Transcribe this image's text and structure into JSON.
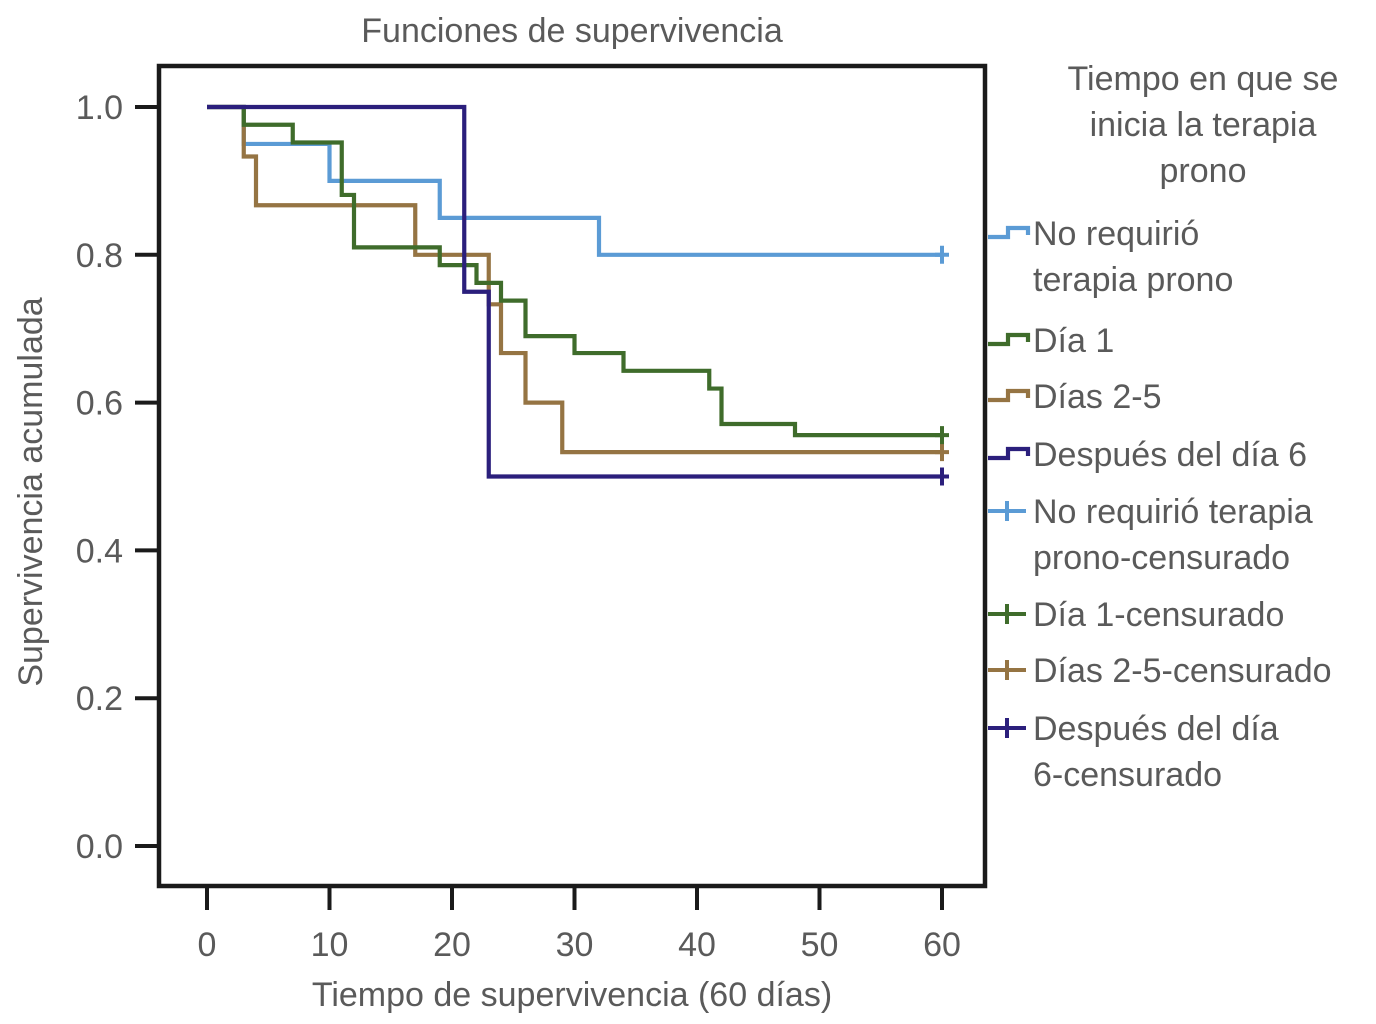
{
  "chart_data": {
    "type": "line",
    "subtype": "kaplan-meier-step",
    "title": "Funciones de supervivencia",
    "xlabel": "Tiempo de supervivencia (60 días)",
    "ylabel": "Supervivencia acumulada",
    "xlim": [
      -4,
      63
    ],
    "ylim": [
      -0.055,
      1.055
    ],
    "xticks": [
      0,
      10,
      20,
      30,
      40,
      50,
      60
    ],
    "xtick_labels": [
      "0",
      "10",
      "20",
      "30",
      "40",
      "50",
      "60"
    ],
    "yticks": [
      0.0,
      0.2,
      0.4,
      0.6,
      0.8,
      1.0
    ],
    "ytick_labels": [
      "0.0",
      "0.2",
      "0.4",
      "0.6",
      "0.8",
      "1.0"
    ],
    "grid": false,
    "series": [
      {
        "name": "No requirió terapia prono",
        "color": "#5b9bd5",
        "times": [
          0,
          3,
          10,
          19,
          32
        ],
        "survival": [
          1.0,
          0.95,
          0.9,
          0.85,
          0.8
        ],
        "end": 60,
        "censored": [
          [
            60,
            0.8
          ]
        ]
      },
      {
        "name": "Día 1",
        "color": "#3f6c2b",
        "times": [
          0,
          3,
          7,
          11,
          12,
          19,
          22,
          24,
          26,
          30,
          34,
          41,
          42,
          48
        ],
        "survival": [
          1.0,
          0.976,
          0.952,
          0.881,
          0.81,
          0.786,
          0.762,
          0.738,
          0.69,
          0.667,
          0.643,
          0.619,
          0.571,
          0.556
        ],
        "end": 60,
        "censored": [
          [
            60,
            0.556
          ]
        ]
      },
      {
        "name": "Días 2-5",
        "color": "#957443",
        "times": [
          0,
          3,
          4,
          17,
          23,
          24,
          26,
          29
        ],
        "survival": [
          1.0,
          0.933,
          0.867,
          0.8,
          0.733,
          0.667,
          0.6,
          0.533
        ],
        "end": 60,
        "censored": [
          [
            60,
            0.533
          ]
        ]
      },
      {
        "name": "Después del día 6",
        "color": "#2b1f7c",
        "times": [
          0,
          21,
          23
        ],
        "survival": [
          1.0,
          0.75,
          0.5
        ],
        "end": 60,
        "censored": [
          [
            60,
            0.5
          ]
        ]
      }
    ],
    "legend": {
      "placement": "right-outside",
      "title_lines": [
        "Tiempo en que se",
        "inicia la terapia",
        "prono"
      ],
      "items": [
        {
          "marker": "step",
          "color": "#5b9bd5",
          "lines": [
            "No requirió",
            "terapia prono"
          ]
        },
        {
          "marker": "step",
          "color": "#3f6c2b",
          "lines": [
            "Día 1"
          ]
        },
        {
          "marker": "step",
          "color": "#957443",
          "lines": [
            "Días 2-5"
          ]
        },
        {
          "marker": "step",
          "color": "#2b1f7c",
          "lines": [
            "Después del día 6"
          ]
        },
        {
          "marker": "cross",
          "color": "#5b9bd5",
          "lines": [
            "No requirió terapia",
            "prono-censurado"
          ]
        },
        {
          "marker": "cross",
          "color": "#3f6c2b",
          "lines": [
            "Día 1-censurado"
          ]
        },
        {
          "marker": "cross",
          "color": "#957443",
          "lines": [
            "Días 2-5-censurado"
          ]
        },
        {
          "marker": "cross",
          "color": "#2b1f7c",
          "lines": [
            "Después del día",
            "6-censurado"
          ]
        }
      ]
    }
  }
}
